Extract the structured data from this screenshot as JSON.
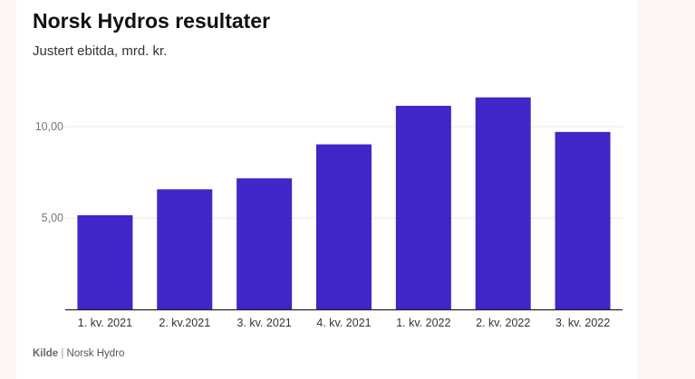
{
  "title": "Norsk Hydros resultater",
  "subtitle": "Justert ebitda, mrd. kr.",
  "source": {
    "label": "Kilde",
    "separator": "|",
    "name": "Norsk Hydro"
  },
  "colors": {
    "bar": "#4126c8",
    "grid": "#e9e9e9",
    "axis": "#222222",
    "tick": "#777777"
  },
  "chart_data": {
    "type": "bar",
    "title": "Norsk Hydros resultater",
    "subtitle": "Justert ebitda, mrd. kr.",
    "categories": [
      "1. kv. 2021",
      "2. kv.2021",
      "3. kv. 2021",
      "4. kv. 2021",
      "1. kv. 2022",
      "2. kv. 2022",
      "3. kv. 2022"
    ],
    "values": [
      5.15,
      6.57,
      7.17,
      9.03,
      11.14,
      11.6,
      9.71
    ],
    "ylim": [
      0,
      12.2
    ],
    "yticks": [
      5,
      10
    ],
    "ytick_labels": [
      "5,00",
      "10,00"
    ],
    "grid": true
  }
}
